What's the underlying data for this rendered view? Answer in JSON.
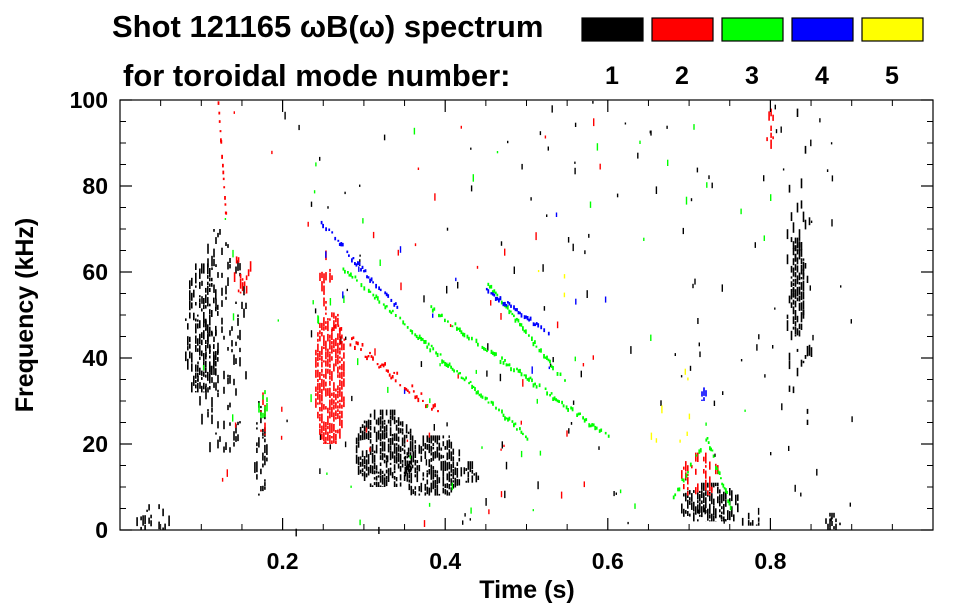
{
  "chart_data": {
    "type": "heatmap",
    "title_line1": "Shot 121165 ωB(ω) spectrum",
    "title_line2": "for toroidal mode number:",
    "xlabel": "Time (s)",
    "ylabel": "Frequency (kHz)",
    "xlim": [
      0.0,
      1.0
    ],
    "ylim": [
      0,
      100
    ],
    "x_ticks": [
      0.2,
      0.4,
      0.6,
      0.8
    ],
    "x_tick_labels": [
      "0.2",
      "0.4",
      "0.6",
      "0.8"
    ],
    "y_ticks": [
      0,
      20,
      40,
      60,
      80,
      100
    ],
    "y_tick_labels": [
      "0",
      "20",
      "40",
      "60",
      "80",
      "100"
    ],
    "legend": [
      {
        "label": "1",
        "color": "#000000"
      },
      {
        "label": "2",
        "color": "#ff0000"
      },
      {
        "label": "3",
        "color": "#00ff00"
      },
      {
        "label": "4",
        "color": "#0000ff"
      },
      {
        "label": "5",
        "color": "#ffff00"
      }
    ],
    "features": [
      {
        "mode": 1,
        "kind": "blob",
        "t": [
          0.08,
          0.12
        ],
        "f": [
          32,
          62
        ],
        "density": 0.55
      },
      {
        "mode": 1,
        "kind": "blob",
        "t": [
          0.095,
          0.155
        ],
        "f": [
          18,
          70
        ],
        "density": 0.18
      },
      {
        "mode": 1,
        "kind": "blob",
        "t": [
          0.165,
          0.18
        ],
        "f": [
          8,
          30
        ],
        "density": 0.35
      },
      {
        "mode": 1,
        "kind": "blob",
        "t": [
          0.29,
          0.36
        ],
        "f": [
          10,
          28
        ],
        "density": 0.75
      },
      {
        "mode": 1,
        "kind": "blob",
        "t": [
          0.35,
          0.42
        ],
        "f": [
          8,
          22
        ],
        "density": 0.7
      },
      {
        "mode": 1,
        "kind": "blob",
        "t": [
          0.42,
          0.44
        ],
        "f": [
          11,
          16
        ],
        "density": 0.45
      },
      {
        "mode": 1,
        "kind": "blob",
        "t": [
          0.69,
          0.76
        ],
        "f": [
          2,
          11
        ],
        "density": 0.75
      },
      {
        "mode": 1,
        "kind": "blob",
        "t": [
          0.76,
          0.79
        ],
        "f": [
          1,
          4
        ],
        "density": 0.55
      },
      {
        "mode": 1,
        "kind": "blob",
        "t": [
          0.825,
          0.84
        ],
        "f": [
          45,
          68
        ],
        "density": 0.9
      },
      {
        "mode": 1,
        "kind": "blob",
        "t": [
          0.82,
          0.85
        ],
        "f": [
          20,
          98
        ],
        "density": 0.1
      },
      {
        "mode": 1,
        "kind": "blob",
        "t": [
          0.865,
          0.885
        ],
        "f": [
          0,
          4
        ],
        "density": 0.55
      },
      {
        "mode": 1,
        "kind": "blob",
        "t": [
          0.02,
          0.06
        ],
        "f": [
          0,
          6
        ],
        "density": 0.3
      },
      {
        "mode": 1,
        "kind": "scatter",
        "t": [
          0.2,
          0.9
        ],
        "f": [
          0,
          100
        ],
        "count": 140
      },
      {
        "mode": 2,
        "kind": "blob",
        "t": [
          0.24,
          0.275
        ],
        "f": [
          20,
          52
        ],
        "density": 0.8
      },
      {
        "mode": 2,
        "kind": "blob",
        "t": [
          0.245,
          0.26
        ],
        "f": [
          52,
          65
        ],
        "density": 0.4
      },
      {
        "mode": 2,
        "kind": "blob",
        "t": [
          0.14,
          0.16
        ],
        "f": [
          55,
          66
        ],
        "density": 0.35
      },
      {
        "mode": 2,
        "kind": "blob",
        "t": [
          0.17,
          0.18
        ],
        "f": [
          22,
          32
        ],
        "density": 0.4
      },
      {
        "mode": 2,
        "kind": "blob",
        "t": [
          0.69,
          0.735
        ],
        "f": [
          8,
          18
        ],
        "density": 0.35
      },
      {
        "mode": 2,
        "kind": "blob",
        "t": [
          0.795,
          0.805
        ],
        "f": [
          88,
          98
        ],
        "density": 0.5
      },
      {
        "mode": 2,
        "kind": "ridge",
        "t": [
          0.26,
          0.39
        ],
        "f": [
          48,
          28
        ],
        "width": 2.5
      },
      {
        "mode": 2,
        "kind": "ridge",
        "t": [
          0.12,
          0.13
        ],
        "f": [
          100,
          72
        ],
        "width": 1.5
      },
      {
        "mode": 2,
        "kind": "scatter",
        "t": [
          0.12,
          0.62
        ],
        "f": [
          2,
          100
        ],
        "count": 45
      },
      {
        "mode": 3,
        "kind": "ridge",
        "t": [
          0.27,
          0.5
        ],
        "f": [
          62,
          22
        ],
        "width": 1.2
      },
      {
        "mode": 3,
        "kind": "ridge",
        "t": [
          0.38,
          0.6
        ],
        "f": [
          52,
          22
        ],
        "width": 1.2
      },
      {
        "mode": 3,
        "kind": "ridge",
        "t": [
          0.45,
          0.55
        ],
        "f": [
          58,
          34
        ],
        "width": 1.0
      },
      {
        "mode": 3,
        "kind": "ridge",
        "t": [
          0.72,
          0.75
        ],
        "f": [
          22,
          6
        ],
        "width": 1.5
      },
      {
        "mode": 3,
        "kind": "ridge",
        "t": [
          0.68,
          0.715
        ],
        "f": [
          8,
          20
        ],
        "width": 1.5
      },
      {
        "mode": 3,
        "kind": "blob",
        "t": [
          0.17,
          0.18
        ],
        "f": [
          26,
          34
        ],
        "density": 0.5
      },
      {
        "mode": 3,
        "kind": "scatter",
        "t": [
          0.1,
          0.8
        ],
        "f": [
          2,
          95
        ],
        "count": 55
      },
      {
        "mode": 4,
        "kind": "ridge",
        "t": [
          0.245,
          0.34
        ],
        "f": [
          72,
          52
        ],
        "width": 1.3
      },
      {
        "mode": 4,
        "kind": "ridge",
        "t": [
          0.45,
          0.53
        ],
        "f": [
          56,
          46
        ],
        "width": 1.0
      },
      {
        "mode": 4,
        "kind": "blob",
        "t": [
          0.71,
          0.72
        ],
        "f": [
          30,
          34
        ],
        "density": 0.6
      },
      {
        "mode": 4,
        "kind": "scatter",
        "t": [
          0.2,
          0.6
        ],
        "f": [
          30,
          75
        ],
        "count": 12
      },
      {
        "mode": 5,
        "kind": "scatter",
        "t": [
          0.65,
          0.72
        ],
        "f": [
          20,
          40
        ],
        "count": 8
      },
      {
        "mode": 5,
        "kind": "scatter",
        "t": [
          0.5,
          0.56
        ],
        "f": [
          55,
          62
        ],
        "count": 3
      }
    ]
  }
}
